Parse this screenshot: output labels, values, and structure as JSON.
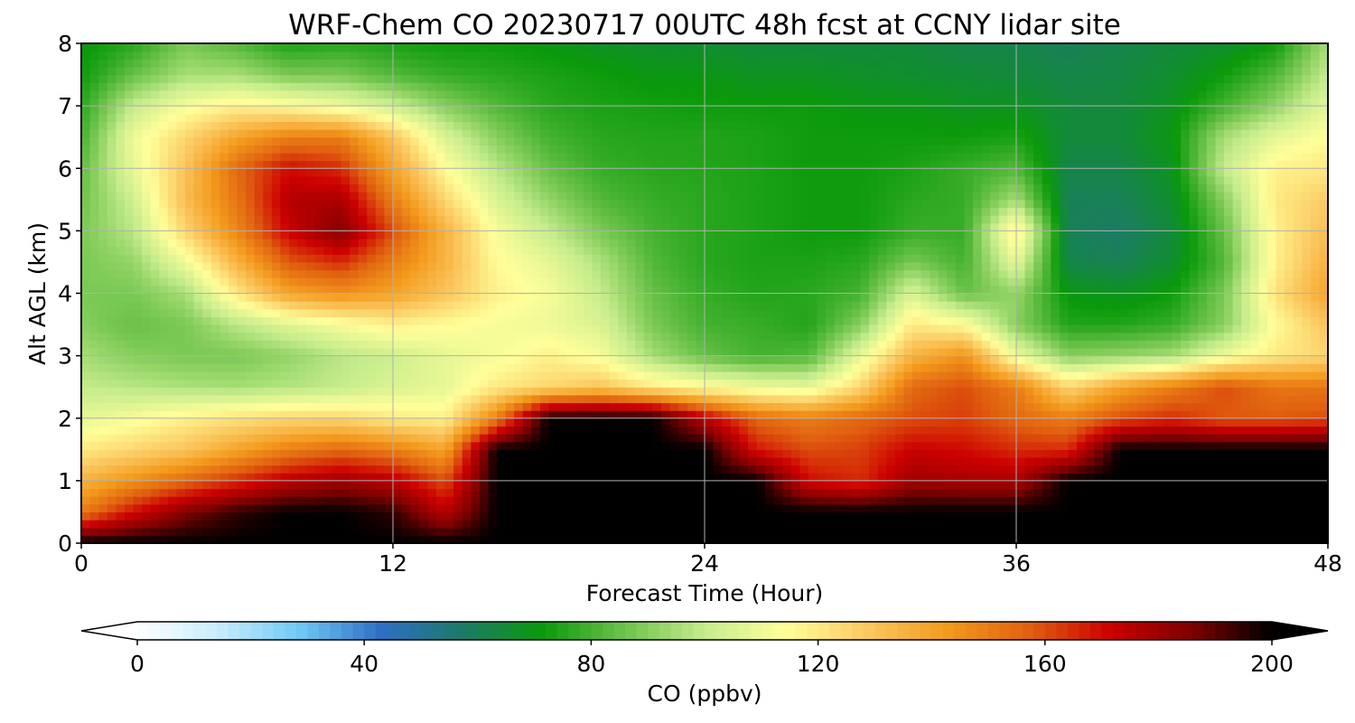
{
  "chart_data": {
    "type": "heatmap",
    "title": "WRF-Chem CO  20230717 00UTC 48h fcst at CCNY lidar site",
    "xlabel": "Forecast Time (Hour)",
    "ylabel": "Alt AGL (km)",
    "xlim": [
      0,
      48
    ],
    "ylim": [
      0,
      8
    ],
    "xticks": [
      "0",
      "12",
      "24",
      "36",
      "48"
    ],
    "yticks": [
      "0",
      "1",
      "2",
      "3",
      "4",
      "5",
      "6",
      "7",
      "8"
    ],
    "grid": true,
    "colorbar": {
      "label": "CO  (ppbv)",
      "range": [
        0,
        200
      ],
      "ticks": [
        "0",
        "40",
        "80",
        "120",
        "160",
        "200"
      ],
      "extend": "both",
      "colors": [
        "#ffffff",
        "#c8ecfc",
        "#6fc9f5",
        "#2e6fc6",
        "#1c7a6a",
        "#0a9a0a",
        "#6cc24a",
        "#c6ec8c",
        "#ffff9a",
        "#fbc860",
        "#f39a1c",
        "#e06010",
        "#cc0000",
        "#800000",
        "#000000"
      ]
    },
    "x_hours": [
      0,
      2,
      4,
      6,
      8,
      10,
      12,
      14,
      16,
      18,
      20,
      22,
      24,
      26,
      28,
      30,
      32,
      34,
      36,
      38,
      40,
      42,
      44,
      46,
      48
    ],
    "y_km": [
      0,
      0.5,
      1,
      1.5,
      2,
      2.5,
      3,
      3.5,
      4,
      4.5,
      5,
      5.5,
      6,
      6.5,
      7,
      7.5,
      8
    ],
    "co_ppbv": [
      [
        200,
        200,
        200,
        200,
        200,
        200,
        200,
        200,
        200,
        200,
        200,
        200,
        200,
        200,
        200,
        200,
        200,
        200,
        200,
        200,
        200,
        200,
        200,
        200,
        200
      ],
      [
        150,
        170,
        185,
        195,
        200,
        200,
        195,
        175,
        200,
        200,
        200,
        200,
        200,
        200,
        200,
        200,
        200,
        200,
        200,
        200,
        200,
        200,
        200,
        200,
        200
      ],
      [
        135,
        145,
        155,
        165,
        175,
        180,
        175,
        160,
        200,
        200,
        200,
        200,
        200,
        200,
        170,
        165,
        180,
        178,
        178,
        200,
        200,
        200,
        200,
        200,
        200
      ],
      [
        120,
        125,
        130,
        140,
        150,
        155,
        150,
        140,
        200,
        200,
        200,
        200,
        200,
        168,
        160,
        162,
        172,
        170,
        165,
        165,
        200,
        200,
        200,
        200,
        200
      ],
      [
        108,
        112,
        118,
        122,
        125,
        125,
        120,
        118,
        150,
        200,
        200,
        200,
        175,
        155,
        150,
        155,
        160,
        162,
        155,
        150,
        160,
        165,
        158,
        158,
        160
      ],
      [
        100,
        98,
        96,
        95,
        97,
        100,
        105,
        108,
        120,
        125,
        130,
        120,
        115,
        110,
        108,
        125,
        155,
        160,
        150,
        125,
        140,
        150,
        160,
        152,
        152
      ],
      [
        95,
        90,
        88,
        88,
        92,
        98,
        102,
        108,
        112,
        118,
        112,
        95,
        85,
        80,
        82,
        108,
        135,
        145,
        110,
        90,
        92,
        95,
        110,
        120,
        125
      ],
      [
        90,
        85,
        88,
        98,
        106,
        112,
        118,
        115,
        112,
        110,
        105,
        88,
        80,
        78,
        75,
        90,
        120,
        115,
        90,
        75,
        75,
        78,
        90,
        115,
        130
      ],
      [
        88,
        88,
        95,
        120,
        140,
        145,
        140,
        130,
        118,
        112,
        100,
        85,
        78,
        75,
        76,
        80,
        105,
        85,
        92,
        70,
        68,
        72,
        88,
        122,
        140
      ],
      [
        88,
        92,
        110,
        135,
        158,
        165,
        150,
        135,
        115,
        108,
        96,
        82,
        76,
        74,
        74,
        76,
        88,
        80,
        108,
        62,
        60,
        66,
        82,
        118,
        136
      ],
      [
        88,
        98,
        125,
        148,
        172,
        185,
        160,
        135,
        112,
        100,
        88,
        80,
        76,
        74,
        72,
        72,
        78,
        78,
        120,
        60,
        58,
        64,
        85,
        118,
        132
      ],
      [
        86,
        102,
        132,
        152,
        176,
        178,
        150,
        125,
        105,
        92,
        82,
        78,
        76,
        74,
        72,
        72,
        76,
        78,
        95,
        60,
        60,
        66,
        90,
        120,
        128
      ],
      [
        84,
        108,
        130,
        155,
        170,
        165,
        140,
        115,
        98,
        85,
        78,
        76,
        75,
        74,
        72,
        72,
        74,
        78,
        82,
        62,
        62,
        68,
        100,
        118,
        120
      ],
      [
        80,
        110,
        125,
        140,
        150,
        150,
        130,
        105,
        90,
        80,
        76,
        75,
        75,
        74,
        72,
        72,
        72,
        72,
        74,
        64,
        64,
        70,
        95,
        108,
        115
      ],
      [
        76,
        100,
        112,
        118,
        115,
        110,
        102,
        90,
        82,
        76,
        74,
        73,
        72,
        72,
        72,
        70,
        70,
        68,
        68,
        64,
        64,
        68,
        80,
        92,
        108
      ],
      [
        72,
        85,
        95,
        95,
        88,
        88,
        82,
        78,
        76,
        74,
        72,
        70,
        70,
        68,
        68,
        67,
        66,
        65,
        64,
        62,
        63,
        66,
        72,
        82,
        100
      ],
      [
        70,
        76,
        88,
        82,
        74,
        76,
        74,
        72,
        72,
        70,
        68,
        66,
        66,
        64,
        64,
        64,
        64,
        62,
        62,
        60,
        62,
        64,
        66,
        72,
        95
      ]
    ]
  }
}
